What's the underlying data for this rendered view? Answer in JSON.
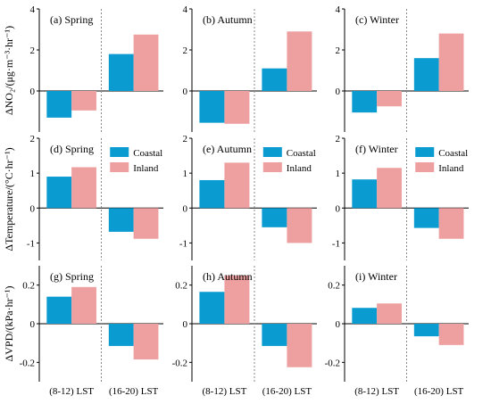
{
  "chart_data": [
    {
      "type": "bar",
      "title": "(a) Spring",
      "row": "no2",
      "categories": [
        "(8-12) LST",
        "(16-20) LST"
      ],
      "series": [
        {
          "name": "Coastal",
          "values": [
            -1.3,
            1.8
          ]
        },
        {
          "name": "Inland",
          "values": [
            -0.95,
            2.75
          ]
        }
      ],
      "ylim": [
        -2,
        4
      ],
      "yticks": [
        0,
        2,
        4
      ],
      "ylabel": "ΔNO₂/(μg·m⁻³·hr⁻¹)",
      "legend": false,
      "show_x": false
    },
    {
      "type": "bar",
      "title": "(b) Autumn",
      "row": "no2",
      "categories": [
        "(8-12) LST",
        "(16-20) LST"
      ],
      "series": [
        {
          "name": "Coastal",
          "values": [
            -1.55,
            1.1
          ]
        },
        {
          "name": "Inland",
          "values": [
            -1.6,
            2.9
          ]
        }
      ],
      "ylim": [
        -2,
        4
      ],
      "yticks": [
        0,
        2,
        4
      ],
      "ylabel": "",
      "legend": false,
      "show_x": false
    },
    {
      "type": "bar",
      "title": "(c) Winter",
      "row": "no2",
      "categories": [
        "(8-12) LST",
        "(16-20) LST"
      ],
      "series": [
        {
          "name": "Coastal",
          "values": [
            -1.05,
            1.6
          ]
        },
        {
          "name": "Inland",
          "values": [
            -0.75,
            2.8
          ]
        }
      ],
      "ylim": [
        -2,
        4
      ],
      "yticks": [
        0,
        2,
        4
      ],
      "ylabel": "",
      "legend": false,
      "show_x": false
    },
    {
      "type": "bar",
      "title": "(d) Spring",
      "row": "temp",
      "categories": [
        "(8-12) LST",
        "(16-20) LST"
      ],
      "series": [
        {
          "name": "Coastal",
          "values": [
            0.9,
            -0.68
          ]
        },
        {
          "name": "Inland",
          "values": [
            1.17,
            -0.88
          ]
        }
      ],
      "ylim": [
        -1.5,
        2
      ],
      "yticks": [
        -1,
        0,
        1,
        2
      ],
      "ylabel": "ΔTemperature/(°C·hr⁻¹)",
      "legend": true,
      "show_x": false
    },
    {
      "type": "bar",
      "title": "(e) Autumn",
      "row": "temp",
      "categories": [
        "(8-12) LST",
        "(16-20) LST"
      ],
      "series": [
        {
          "name": "Coastal",
          "values": [
            0.8,
            -0.55
          ]
        },
        {
          "name": "Inland",
          "values": [
            1.3,
            -1.0
          ]
        }
      ],
      "ylim": [
        -1.5,
        2
      ],
      "yticks": [
        -1,
        0,
        1,
        2
      ],
      "ylabel": "",
      "legend": true,
      "show_x": false
    },
    {
      "type": "bar",
      "title": "(f) Winter",
      "row": "temp",
      "categories": [
        "(8-12) LST",
        "(16-20) LST"
      ],
      "series": [
        {
          "name": "Coastal",
          "values": [
            0.82,
            -0.57
          ]
        },
        {
          "name": "Inland",
          "values": [
            1.15,
            -0.88
          ]
        }
      ],
      "ylim": [
        -1.5,
        2
      ],
      "yticks": [
        -1,
        0,
        1,
        2
      ],
      "ylabel": "",
      "legend": true,
      "show_x": false
    },
    {
      "type": "bar",
      "title": "(g) Spring",
      "row": "vpd",
      "categories": [
        "(8-12) LST",
        "(16-20) LST"
      ],
      "series": [
        {
          "name": "Coastal",
          "values": [
            0.14,
            -0.115
          ]
        },
        {
          "name": "Inland",
          "values": [
            0.19,
            -0.185
          ]
        }
      ],
      "ylim": [
        -0.3,
        0.3
      ],
      "yticks": [
        -0.2,
        0,
        0.2
      ],
      "ylabel": "ΔVPD/(kPa·hr⁻¹)",
      "legend": false,
      "show_x": true
    },
    {
      "type": "bar",
      "title": "(h) Autumn",
      "row": "vpd",
      "categories": [
        "(8-12) LST",
        "(16-20) LST"
      ],
      "series": [
        {
          "name": "Coastal",
          "values": [
            0.165,
            -0.115
          ]
        },
        {
          "name": "Inland",
          "values": [
            0.25,
            -0.225
          ]
        }
      ],
      "ylim": [
        -0.3,
        0.3
      ],
      "yticks": [
        -0.2,
        0,
        0.2
      ],
      "ylabel": "",
      "legend": false,
      "show_x": true
    },
    {
      "type": "bar",
      "title": "(i) Winter",
      "row": "vpd",
      "categories": [
        "(8-12) LST",
        "(16-20) LST"
      ],
      "series": [
        {
          "name": "Coastal",
          "values": [
            0.082,
            -0.065
          ]
        },
        {
          "name": "Inland",
          "values": [
            0.105,
            -0.11
          ]
        }
      ],
      "ylim": [
        -0.3,
        0.3
      ],
      "yticks": [
        -0.2,
        0,
        0.2
      ],
      "ylabel": "",
      "legend": false,
      "show_x": true
    }
  ],
  "colors": {
    "Coastal": "#0a9bd1",
    "Inland": "#ee9f9f",
    "axis": "#000000",
    "divider": "#888888"
  }
}
